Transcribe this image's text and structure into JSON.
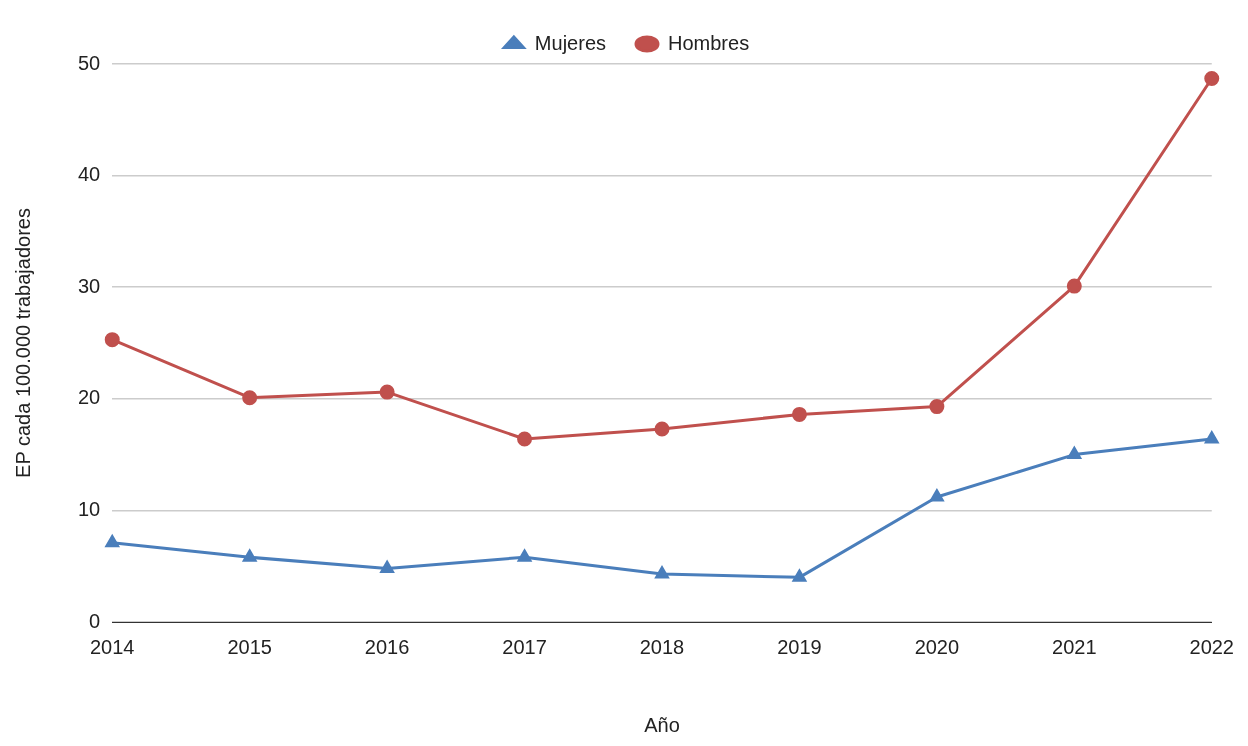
{
  "chart_data": {
    "type": "line",
    "xlabel": "Año",
    "ylabel": "EP cada 100.000 trabajadores",
    "categories": [
      "2014",
      "2015",
      "2016",
      "2017",
      "2018",
      "2019",
      "2020",
      "2021",
      "2022"
    ],
    "series": [
      {
        "name": "Mujeres",
        "color": "#4a7ebb",
        "marker": "triangle",
        "values": [
          7.1,
          5.8,
          4.8,
          5.8,
          4.3,
          4.0,
          11.2,
          15.0,
          16.4
        ]
      },
      {
        "name": "Hombres",
        "color": "#c0504d",
        "marker": "circle",
        "values": [
          25.3,
          20.1,
          20.6,
          16.4,
          17.3,
          18.6,
          19.3,
          30.1,
          48.7
        ]
      }
    ],
    "ylim": [
      0,
      50
    ],
    "yticks": [
      0,
      10,
      20,
      30,
      40,
      50
    ],
    "grid": "y",
    "legend": "top",
    "line_style": "solid"
  }
}
